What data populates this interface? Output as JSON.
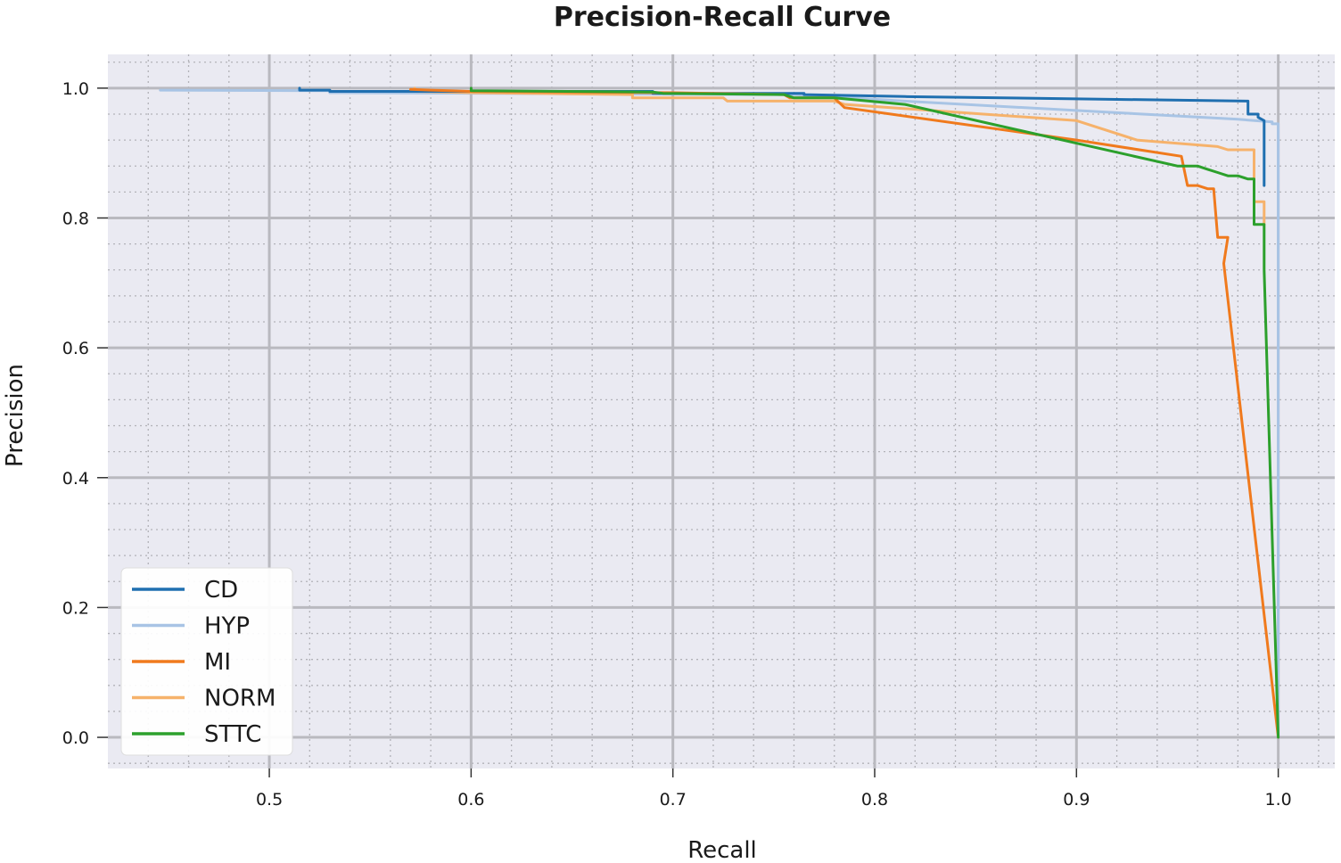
{
  "chart_data": {
    "type": "line",
    "title": "Precision-Recall Curve",
    "xlabel": "Recall",
    "ylabel": "Precision",
    "xlim": [
      0.42,
      1.028
    ],
    "ylim": [
      -0.048,
      1.052
    ],
    "xticks": [
      0.5,
      0.6,
      0.7,
      0.8,
      0.9,
      1.0
    ],
    "yticks": [
      0.0,
      0.2,
      0.4,
      0.6,
      0.8,
      1.0
    ],
    "xtick_labels": [
      "0.5",
      "0.6",
      "0.7",
      "0.8",
      "0.9",
      "1.0"
    ],
    "ytick_labels": [
      "0.0",
      "0.2",
      "0.4",
      "0.6",
      "0.8",
      "1.0"
    ],
    "grid": true,
    "minor_grid": true,
    "legend_position": "lower-left",
    "series": [
      {
        "name": "CD",
        "color": "#1f6fb0",
        "points": [
          [
            0.515,
            1.0
          ],
          [
            0.515,
            0.997
          ],
          [
            0.53,
            0.997
          ],
          [
            0.53,
            0.995
          ],
          [
            0.69,
            0.995
          ],
          [
            0.69,
            0.992
          ],
          [
            0.765,
            0.992
          ],
          [
            0.765,
            0.99
          ],
          [
            0.815,
            0.987
          ],
          [
            0.985,
            0.98
          ],
          [
            0.985,
            0.96
          ],
          [
            0.99,
            0.96
          ],
          [
            0.99,
            0.955
          ],
          [
            0.993,
            0.95
          ],
          [
            0.993,
            0.85
          ]
        ]
      },
      {
        "name": "HYP",
        "color": "#a8c4e5",
        "points": [
          [
            0.446,
            0.997
          ],
          [
            0.53,
            0.996
          ],
          [
            0.53,
            0.993
          ],
          [
            0.76,
            0.99
          ],
          [
            0.815,
            0.98
          ],
          [
            0.98,
            0.952
          ],
          [
            0.997,
            0.948
          ],
          [
            0.997,
            0.945
          ],
          [
            1.0,
            0.945
          ],
          [
            1.0,
            0.0
          ]
        ]
      },
      {
        "name": "MI",
        "color": "#f07a1d",
        "points": [
          [
            0.57,
            0.998
          ],
          [
            0.58,
            0.997
          ],
          [
            0.6,
            0.995
          ],
          [
            0.7,
            0.993
          ],
          [
            0.755,
            0.99
          ],
          [
            0.758,
            0.985
          ],
          [
            0.78,
            0.985
          ],
          [
            0.785,
            0.97
          ],
          [
            0.9,
            0.92
          ],
          [
            0.952,
            0.895
          ],
          [
            0.955,
            0.85
          ],
          [
            0.96,
            0.85
          ],
          [
            0.965,
            0.845
          ],
          [
            0.968,
            0.845
          ],
          [
            0.97,
            0.77
          ],
          [
            0.975,
            0.77
          ],
          [
            0.973,
            0.73
          ],
          [
            1.0,
            0.0
          ]
        ]
      },
      {
        "name": "NORM",
        "color": "#f6b26b",
        "points": [
          [
            0.572,
            1.0
          ],
          [
            0.572,
            0.995
          ],
          [
            0.6,
            0.993
          ],
          [
            0.68,
            0.99
          ],
          [
            0.68,
            0.985
          ],
          [
            0.725,
            0.985
          ],
          [
            0.727,
            0.98
          ],
          [
            0.78,
            0.98
          ],
          [
            0.785,
            0.975
          ],
          [
            0.9,
            0.95
          ],
          [
            0.93,
            0.92
          ],
          [
            0.97,
            0.91
          ],
          [
            0.975,
            0.905
          ],
          [
            0.988,
            0.905
          ],
          [
            0.988,
            0.825
          ],
          [
            0.993,
            0.825
          ],
          [
            0.993,
            0.79
          ]
        ]
      },
      {
        "name": "STTC",
        "color": "#2ca02c",
        "points": [
          [
            0.6,
            1.0
          ],
          [
            0.6,
            0.996
          ],
          [
            0.69,
            0.994
          ],
          [
            0.695,
            0.992
          ],
          [
            0.755,
            0.99
          ],
          [
            0.76,
            0.985
          ],
          [
            0.78,
            0.985
          ],
          [
            0.815,
            0.975
          ],
          [
            0.95,
            0.88
          ],
          [
            0.96,
            0.88
          ],
          [
            0.965,
            0.875
          ],
          [
            0.97,
            0.87
          ],
          [
            0.975,
            0.865
          ],
          [
            0.98,
            0.865
          ],
          [
            0.985,
            0.86
          ],
          [
            0.988,
            0.86
          ],
          [
            0.988,
            0.79
          ],
          [
            0.993,
            0.79
          ],
          [
            0.993,
            0.72
          ],
          [
            1.0,
            0.0
          ]
        ]
      }
    ]
  }
}
